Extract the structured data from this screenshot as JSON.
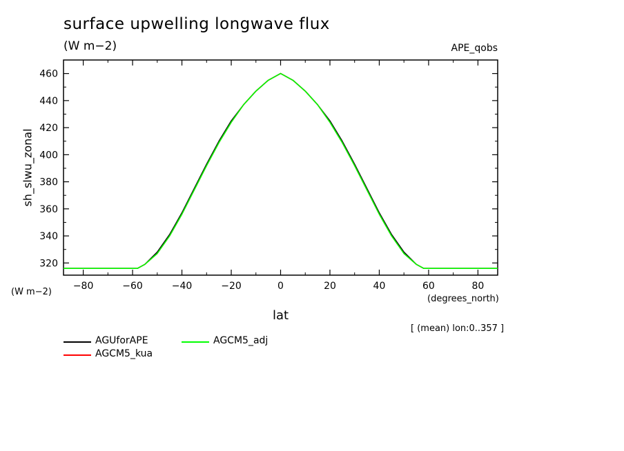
{
  "title": "surface upwelling longwave flux",
  "units": "(W m−2)",
  "case_label": "APE_qobs",
  "y_axis_label": "sh_slwu_zonal",
  "y_units": "(W m−2)",
  "x_axis_label": "lat",
  "x_units": "(degrees_north)",
  "note": "[ (mean) lon:0..357 ]",
  "legend": [
    {
      "name": "AGUforAPE",
      "color": "#000000"
    },
    {
      "name": "AGCM5_adj",
      "color": "#00ff00"
    },
    {
      "name": "AGCM5_kua",
      "color": "#ff0000"
    }
  ],
  "chart_data": {
    "type": "line",
    "title": "surface upwelling longwave flux",
    "xlabel": "lat",
    "ylabel": "sh_slwu_zonal",
    "xlim": [
      -88,
      88
    ],
    "ylim": [
      311,
      470
    ],
    "x_ticks": [
      -80,
      -60,
      -40,
      -20,
      0,
      20,
      40,
      60,
      80
    ],
    "x_tick_labels": [
      "−80",
      "−60",
      "−40",
      "−20",
      "0",
      "20",
      "40",
      "60",
      "80"
    ],
    "y_ticks": [
      320,
      340,
      360,
      380,
      400,
      420,
      440,
      460
    ],
    "y_tick_labels": [
      "320",
      "340",
      "360",
      "380",
      "400",
      "420",
      "440",
      "460"
    ],
    "x": [
      -88,
      -80,
      -70,
      -60,
      -58,
      -55,
      -50,
      -45,
      -40,
      -35,
      -30,
      -25,
      -20,
      -15,
      -10,
      -5,
      0,
      5,
      10,
      15,
      20,
      25,
      30,
      35,
      40,
      45,
      50,
      55,
      58,
      60,
      70,
      80,
      88
    ],
    "series": [
      {
        "name": "AGUforAPE",
        "color": "#000000",
        "values": [
          316,
          316,
          316,
          316,
          316,
          319,
          328,
          341,
          357,
          375,
          393,
          410,
          425,
          437,
          447,
          455,
          460,
          455,
          447,
          437,
          425,
          410,
          393,
          375,
          357,
          341,
          328,
          319,
          316,
          316,
          316,
          316,
          316
        ]
      },
      {
        "name": "AGCM5_kua",
        "color": "#ff0000",
        "values": [
          316,
          316,
          316,
          316,
          316,
          319,
          327,
          340,
          356,
          374,
          392,
          409,
          424,
          437,
          447,
          455,
          460,
          455,
          447,
          437,
          424,
          409,
          392,
          374,
          356,
          340,
          327,
          319,
          316,
          316,
          316,
          316,
          316
        ]
      },
      {
        "name": "AGCM5_adj",
        "color": "#00ff00",
        "values": [
          316,
          316,
          316,
          316,
          316,
          319,
          327,
          340,
          356,
          374,
          392,
          409,
          424,
          437,
          447,
          455,
          460,
          455,
          447,
          437,
          424,
          409,
          392,
          374,
          356,
          340,
          327,
          319,
          316,
          316,
          316,
          316,
          316
        ]
      }
    ]
  }
}
